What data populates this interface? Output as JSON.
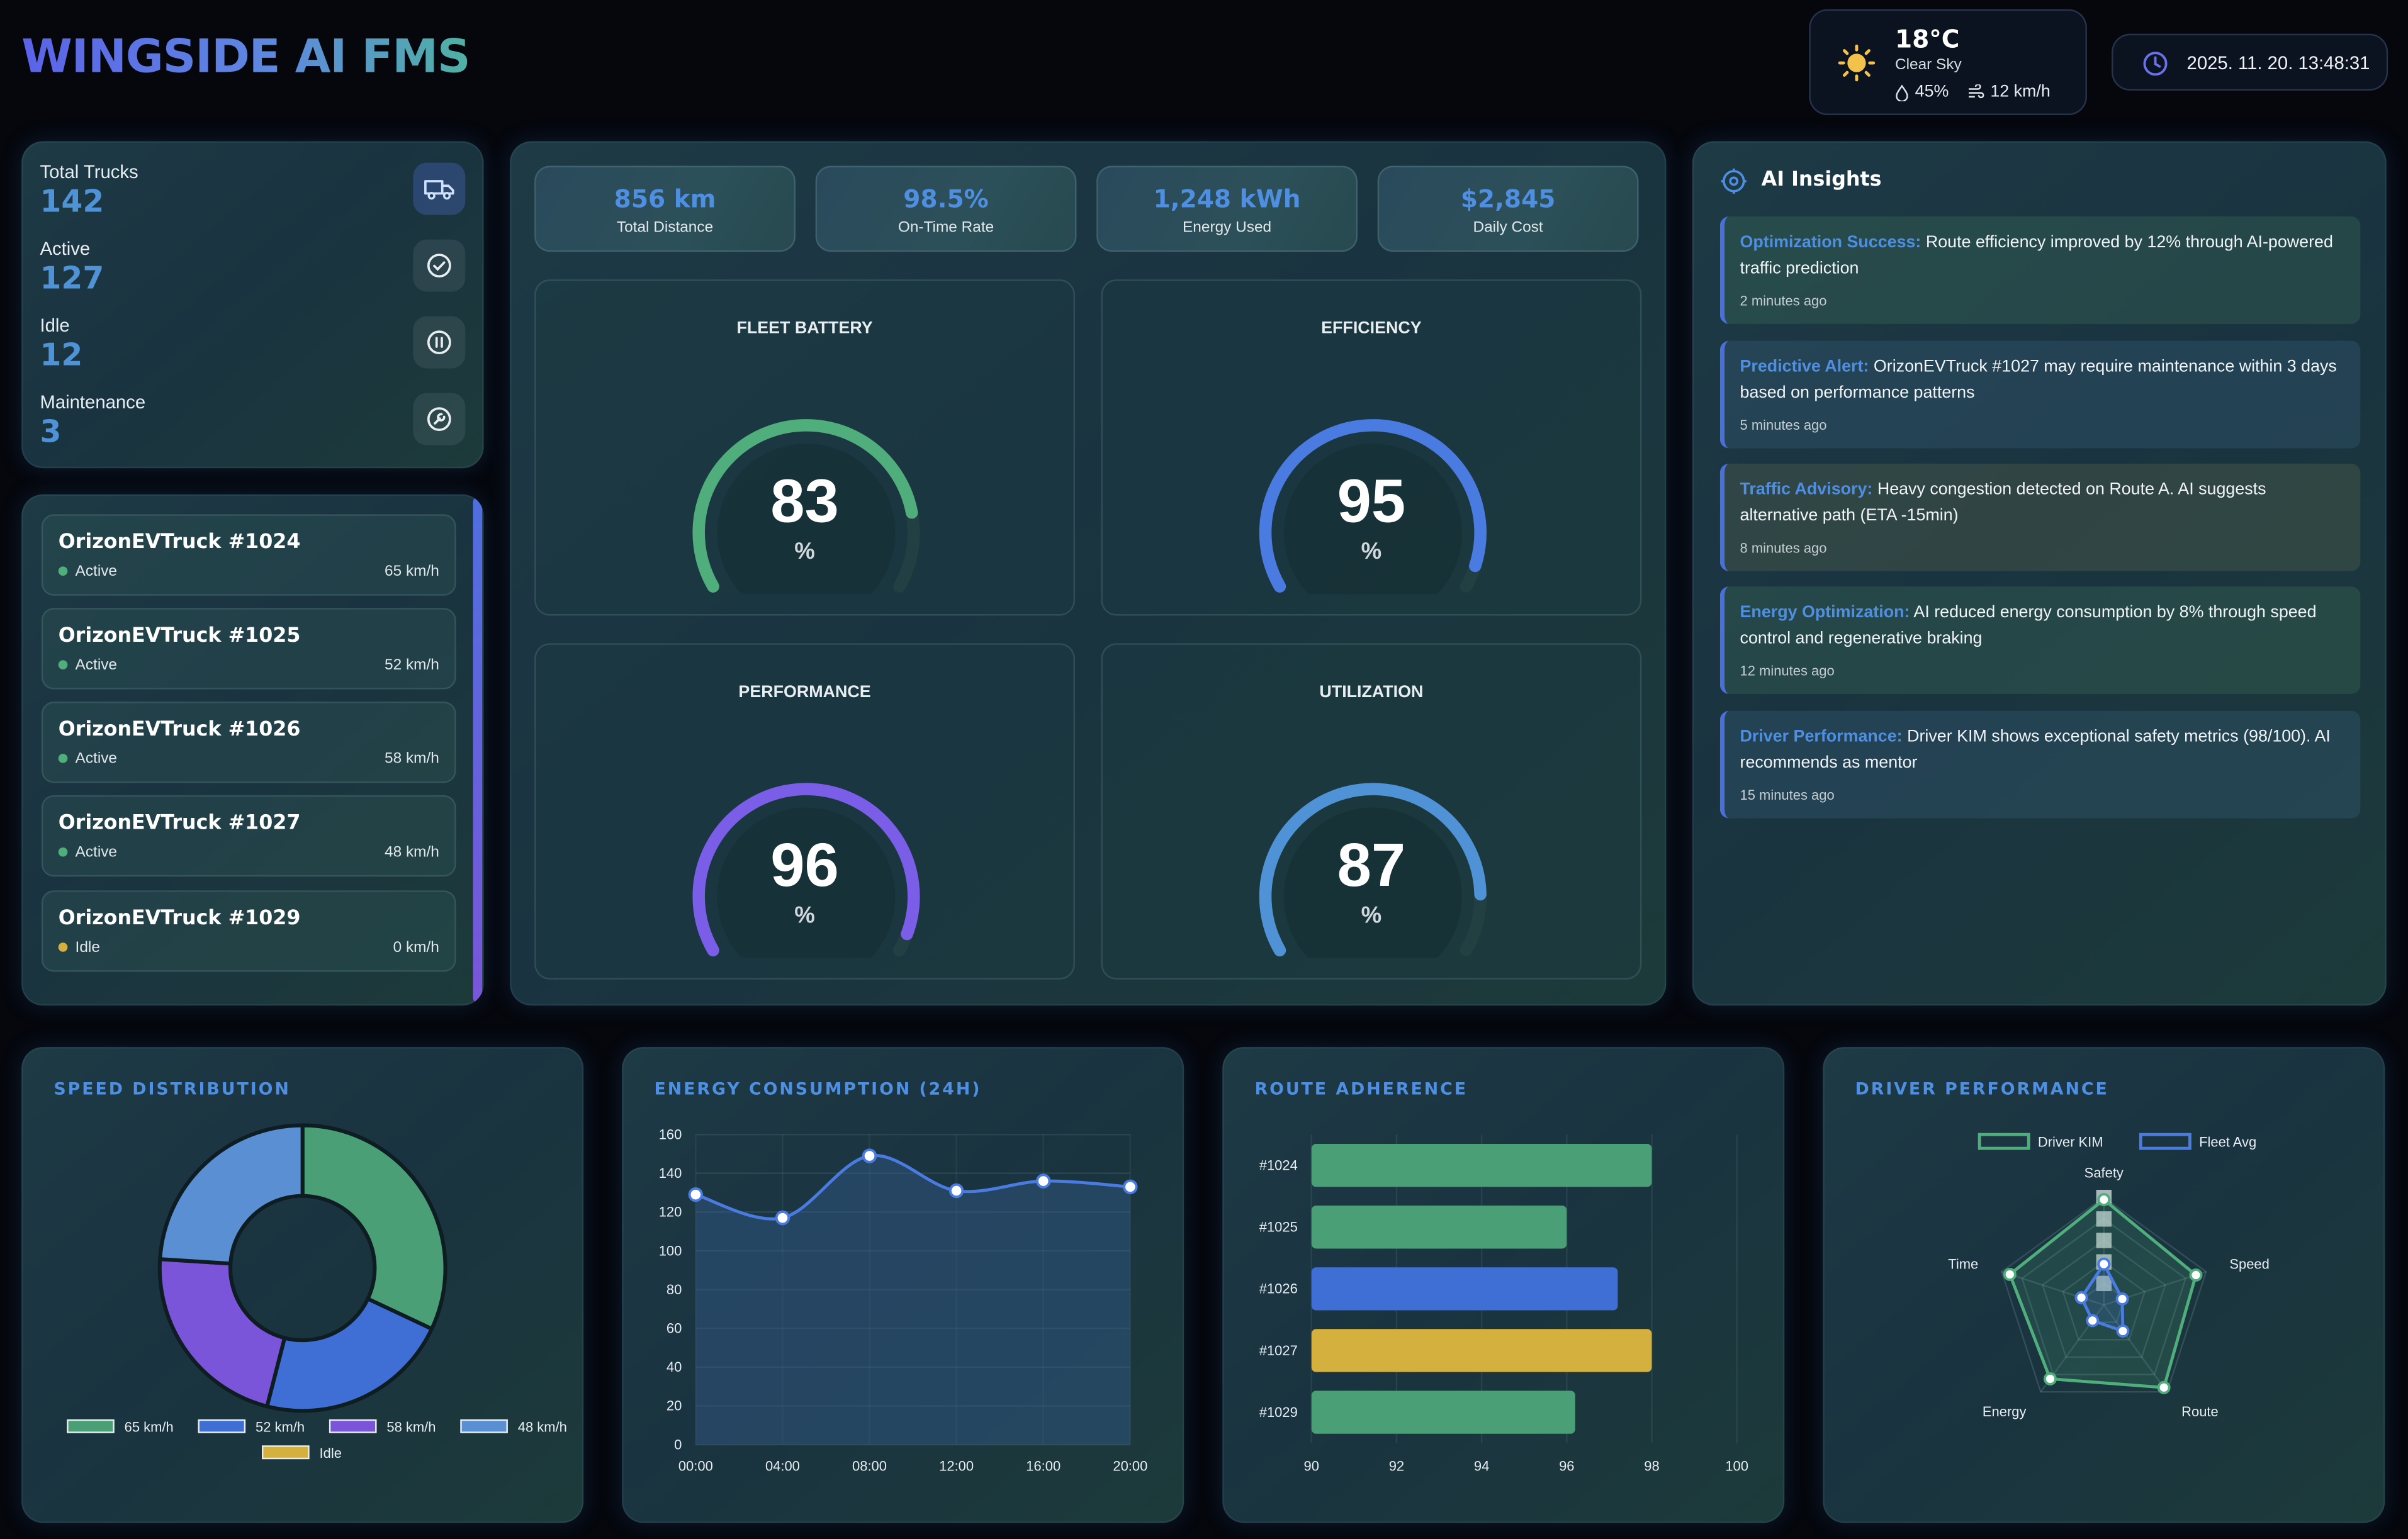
{
  "header": {
    "logo": "WINGSIDE AI FMS",
    "weather": {
      "temp": "18°C",
      "condition": "Clear Sky",
      "humidity": "45%",
      "wind": "12 km/h",
      "icon": "sun-icon"
    },
    "clock": {
      "datetime": "2025. 11. 20. 13:48:31",
      "icon": "clock-icon"
    }
  },
  "stats": [
    {
      "label": "Total Trucks",
      "value": "142",
      "icon": "truck-icon"
    },
    {
      "label": "Active",
      "value": "127",
      "icon": "check-circle-icon"
    },
    {
      "label": "Idle",
      "value": "12",
      "icon": "pause-circle-icon"
    },
    {
      "label": "Maintenance",
      "value": "3",
      "icon": "wrench-icon"
    }
  ],
  "trucks": [
    {
      "name": "OrizonEVTruck #1024",
      "status": "Active",
      "speed": "65 km/h",
      "status_color": "#4fae7b"
    },
    {
      "name": "OrizonEVTruck #1025",
      "status": "Active",
      "speed": "52 km/h",
      "status_color": "#4fae7b"
    },
    {
      "name": "OrizonEVTruck #1026",
      "status": "Active",
      "speed": "58 km/h",
      "status_color": "#4fae7b"
    },
    {
      "name": "OrizonEVTruck #1027",
      "status": "Active",
      "speed": "48 km/h",
      "status_color": "#4fae7b"
    },
    {
      "name": "OrizonEVTruck #1029",
      "status": "Idle",
      "speed": "0 km/h",
      "status_color": "#d4b03f"
    }
  ],
  "kpis": [
    {
      "value": "856 km",
      "label": "Total Distance"
    },
    {
      "value": "98.5%",
      "label": "On-Time Rate"
    },
    {
      "value": "1,248 kWh",
      "label": "Energy Used"
    },
    {
      "value": "$2,845",
      "label": "Daily Cost"
    }
  ],
  "gauges": [
    {
      "title": "FLEET BATTERY",
      "value": 83,
      "unit": "%",
      "color": "#4fae7b"
    },
    {
      "title": "EFFICIENCY",
      "value": 95,
      "unit": "%",
      "color": "#4a7be0"
    },
    {
      "title": "PERFORMANCE",
      "value": 96,
      "unit": "%",
      "color": "#7b5ee8"
    },
    {
      "title": "UTILIZATION",
      "value": 87,
      "unit": "%",
      "color": "#4f93d6"
    }
  ],
  "insights": {
    "title": "AI Insights",
    "items": [
      {
        "key": "Optimization Success:",
        "text": "Route efficiency improved by 12% through AI-powered traffic prediction",
        "time": "2 minutes ago"
      },
      {
        "key": "Predictive Alert:",
        "text": "OrizonEVTruck #1027 may require maintenance within 3 days based on performance patterns",
        "time": "5 minutes ago"
      },
      {
        "key": "Traffic Advisory:",
        "text": "Heavy congestion detected on Route A. AI suggests alternative path (ETA -15min)",
        "time": "8 minutes ago"
      },
      {
        "key": "Energy Optimization:",
        "text": "AI reduced energy consumption by 8% through speed control and regenerative braking",
        "time": "12 minutes ago"
      },
      {
        "key": "Driver Performance:",
        "text": "Driver KIM shows exceptional safety metrics (98/100). AI recommends as mentor",
        "time": "15 minutes ago"
      }
    ]
  },
  "chart_data": [
    {
      "type": "pie",
      "title": "SPEED DISTRIBUTION",
      "categories": [
        "65 km/h",
        "52 km/h",
        "58 km/h",
        "48 km/h",
        "Idle"
      ],
      "values": [
        32,
        22,
        22,
        24,
        0
      ],
      "colors": [
        "#4a9f76",
        "#3f6fd4",
        "#7a55da",
        "#5b8fd4",
        "#d4b03f"
      ]
    },
    {
      "type": "area",
      "title": "ENERGY CONSUMPTION (24H)",
      "x": [
        "00:00",
        "04:00",
        "08:00",
        "12:00",
        "16:00",
        "20:00"
      ],
      "values": [
        129,
        117,
        149,
        131,
        136,
        133
      ],
      "ylim": [
        0,
        160
      ],
      "yticks": [
        0,
        20,
        40,
        60,
        80,
        100,
        120,
        140,
        160
      ]
    },
    {
      "type": "bar",
      "title": "ROUTE ADHERENCE",
      "categories": [
        "#1024",
        "#1025",
        "#1026",
        "#1027",
        "#1029"
      ],
      "values": [
        98,
        96,
        97.2,
        98,
        96.2
      ],
      "colors": [
        "#4a9f76",
        "#4a9f76",
        "#3f6fd4",
        "#d4b03f",
        "#4a9f76"
      ],
      "xlim": [
        90,
        100
      ],
      "xticks": [
        90,
        92,
        94,
        96,
        98,
        100
      ]
    },
    {
      "type": "radar",
      "title": "DRIVER PERFORMANCE",
      "axes": [
        "Safety",
        "Speed",
        "Route",
        "Energy",
        "Time"
      ],
      "series": [
        {
          "name": "Driver KIM",
          "values": [
            98,
            90,
            95,
            85,
            92
          ],
          "color": "#4fae7b"
        },
        {
          "name": "Fleet Avg",
          "values": [
            38,
            18,
            30,
            18,
            22
          ],
          "color": "#4a7be0"
        }
      ],
      "rscale_labels": [
        "",
        "",
        "",
        "",
        ""
      ]
    }
  ]
}
